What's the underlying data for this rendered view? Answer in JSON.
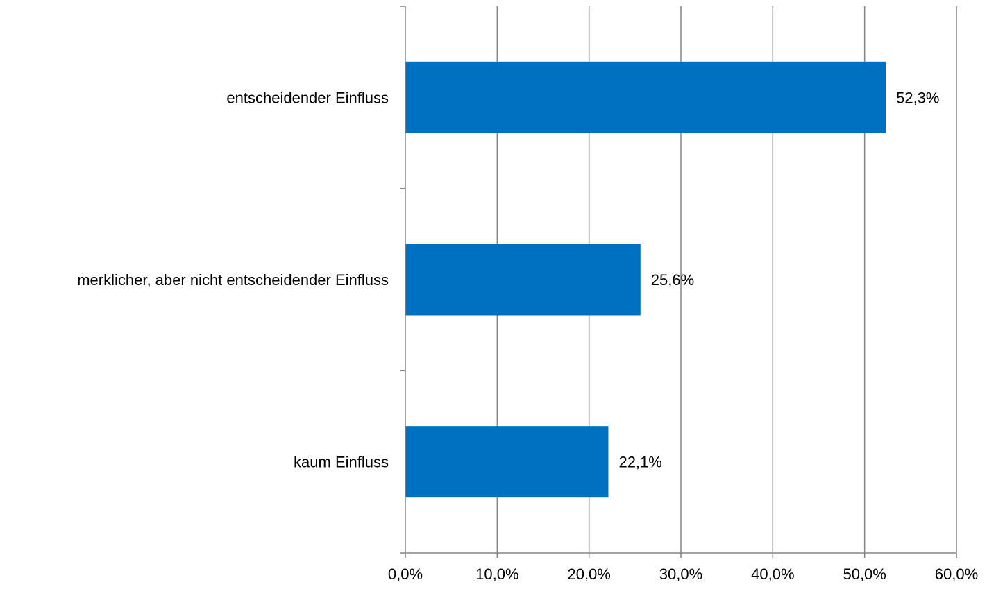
{
  "chart_data": {
    "type": "bar",
    "orientation": "horizontal",
    "categories": [
      "entscheidender Einfluss",
      "merklicher, aber nicht entscheidender Einfluss",
      "kaum Einfluss"
    ],
    "values": [
      52.3,
      25.6,
      22.1
    ],
    "value_labels": [
      "52,3%",
      "25,6%",
      "22,1%"
    ],
    "title": "",
    "xlabel": "",
    "ylabel": "",
    "xlim": [
      0,
      60
    ],
    "x_ticks": [
      0,
      10,
      20,
      30,
      40,
      50,
      60
    ],
    "x_tick_labels": [
      "0,0%",
      "10,0%",
      "20,0%",
      "30,0%",
      "40,0%",
      "50,0%",
      "60,0%"
    ],
    "grid": "vertical",
    "legend": "none",
    "colors": {
      "bar": "#0070C0",
      "grid": "#868686",
      "axis": "#868686",
      "text": "#000000"
    }
  }
}
